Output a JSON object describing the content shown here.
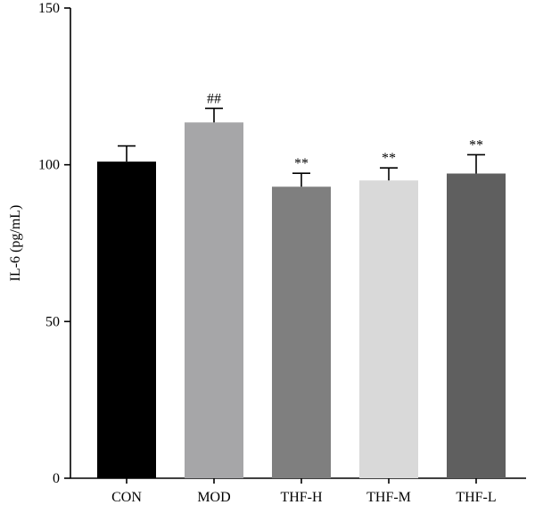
{
  "chart_data": {
    "type": "bar",
    "title": "",
    "xlabel": "",
    "ylabel": "IL-6 (pg/mL)",
    "ylim": [
      0,
      150
    ],
    "yticks": [
      0,
      50,
      100,
      150
    ],
    "categories": [
      "CON",
      "MOD",
      "THF-H",
      "THF-M",
      "THF-L"
    ],
    "values": [
      101,
      113.5,
      93,
      95,
      97.2
    ],
    "errors": [
      5,
      4.5,
      4.3,
      4,
      6
    ],
    "colors": [
      "#000000",
      "#a6a6a8",
      "#7f7f7f",
      "#d9d9d9",
      "#5f5f5f"
    ],
    "annotations": [
      "",
      "##",
      "**",
      "**",
      "**"
    ],
    "grid": false,
    "legend": "none"
  }
}
